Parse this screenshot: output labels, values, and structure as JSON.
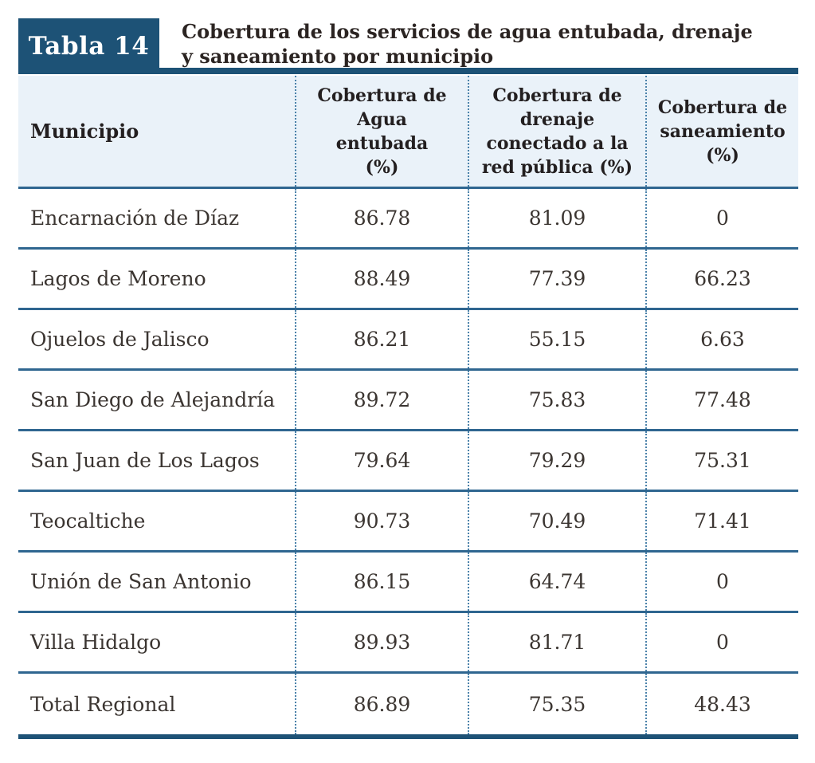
{
  "label": "Tabla 14",
  "title": {
    "line1": "Cobertura de los servicios de agua entubada, drenaje",
    "line2": "y saneamiento por municipio"
  },
  "header": {
    "municipio": "Municipio",
    "agua": "Cobertura de Agua entubada (%)",
    "drenaje": "Cobertura de drenaje conectado a la red pública (%)",
    "saneamiento": "Cobertura de saneamiento (%)"
  },
  "rows": [
    {
      "municipio": "Encarnación de Díaz",
      "agua": "86.78",
      "drenaje": "81.09",
      "saneamiento": "0"
    },
    {
      "municipio": "Lagos de Moreno",
      "agua": "88.49",
      "drenaje": "77.39",
      "saneamiento": "66.23"
    },
    {
      "municipio": "Ojuelos de Jalisco",
      "agua": "86.21",
      "drenaje": "55.15",
      "saneamiento": "6.63"
    },
    {
      "municipio": "San Diego de Alejandría",
      "agua": "89.72",
      "drenaje": "75.83",
      "saneamiento": "77.48"
    },
    {
      "municipio": "San Juan de Los Lagos",
      "agua": "79.64",
      "drenaje": "79.29",
      "saneamiento": "75.31"
    },
    {
      "municipio": "Teocaltiche",
      "agua": "90.73",
      "drenaje": "70.49",
      "saneamiento": "71.41"
    },
    {
      "municipio": "Unión de San Antonio",
      "agua": "86.15",
      "drenaje": "64.74",
      "saneamiento": "0"
    },
    {
      "municipio": "Villa Hidalgo",
      "agua": "89.93",
      "drenaje": "81.71",
      "saneamiento": "0"
    },
    {
      "municipio": "Total Regional",
      "agua": "86.89",
      "drenaje": "75.35",
      "saneamiento": "48.43"
    }
  ],
  "colors": {
    "navy": "#1d5276",
    "header_bg": "#eaf2f9",
    "separator_dark": "#2f6690",
    "separator_light": "#c3dcec",
    "dotted_line": "#4b82aa",
    "title_text": "#2b2422",
    "header_text": "#231f20",
    "body_text": "#3b3531"
  }
}
